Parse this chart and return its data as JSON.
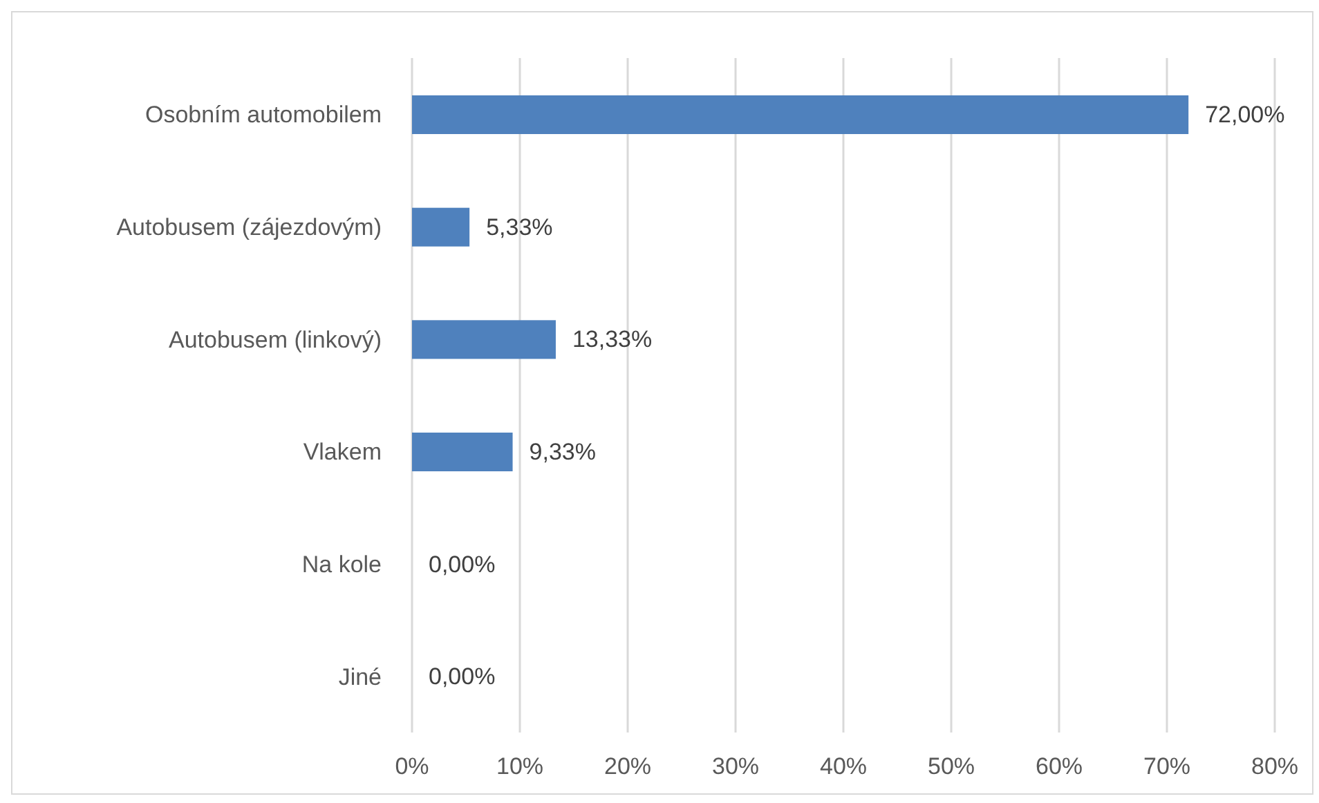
{
  "chart_data": {
    "type": "bar",
    "orientation": "horizontal",
    "categories": [
      "Osobním automobilem",
      "Autobusem (zájezdovým)",
      "Autobusem (linkový)",
      "Vlakem",
      "Na kole",
      "Jiné"
    ],
    "values": [
      72,
      5.33,
      13.33,
      9.33,
      0,
      0
    ],
    "value_labels": [
      "72,00%",
      "5,33%",
      "13,33%",
      "9,33%",
      "0,00%",
      "0,00%"
    ],
    "color": "#4f81bd",
    "xlim": [
      0,
      80
    ],
    "xticks": [
      {
        "value": 0,
        "label": "0%"
      },
      {
        "value": 10,
        "label": "10%"
      },
      {
        "value": 20,
        "label": "20%"
      },
      {
        "value": 30,
        "label": "30%"
      },
      {
        "value": 40,
        "label": "40%"
      },
      {
        "value": 50,
        "label": "50%"
      },
      {
        "value": 60,
        "label": "60%"
      },
      {
        "value": 70,
        "label": "70%"
      },
      {
        "value": 80,
        "label": "80%"
      }
    ],
    "grid": "x",
    "legend": false
  }
}
